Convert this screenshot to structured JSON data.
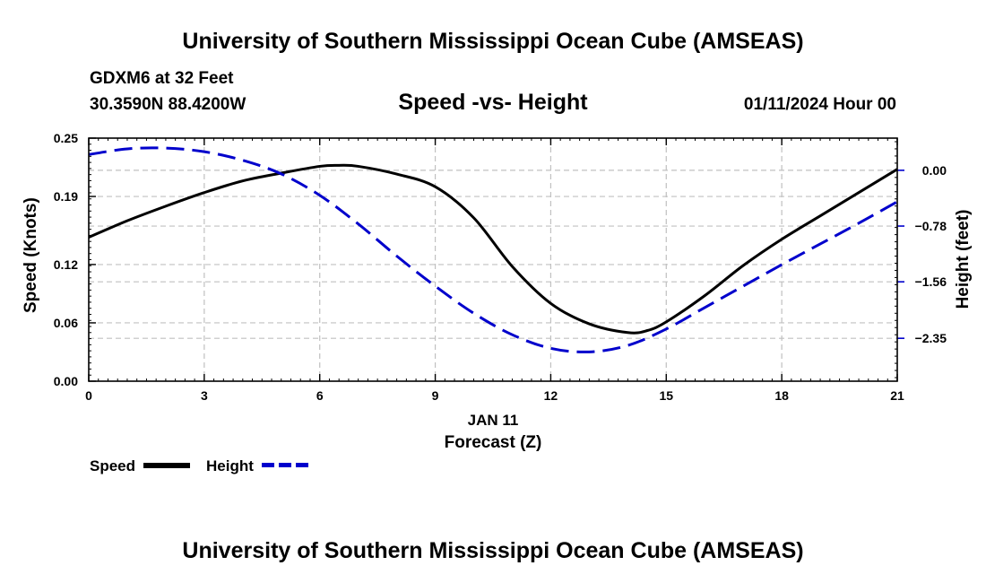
{
  "title": "University of Southern Mississippi Ocean Cube (AMSEAS)",
  "footer_title": "University of Southern Mississippi Ocean Cube (AMSEAS)",
  "station": {
    "name": "GDXM6 at 32 Feet",
    "coords": "30.3590N  88.4200W",
    "datetime": "01/11/2024 Hour 00"
  },
  "legend": {
    "speed_label": "Speed",
    "height_label": "Height"
  },
  "colors": {
    "speed": "#000000",
    "height": "#0000cc",
    "grid": "#c0c0c0"
  },
  "chart_data": {
    "type": "line",
    "title": "Speed -vs- Height",
    "xlabel": "Forecast (Z)",
    "x_date_label": "JAN 11",
    "xlim": [
      0,
      21
    ],
    "x_ticks": [
      0,
      3,
      6,
      9,
      12,
      15,
      18,
      21
    ],
    "x_tick_labels": [
      "0",
      "3",
      "6",
      "9",
      "12",
      "15",
      "18",
      "21"
    ],
    "y_left": {
      "label": "Speed (Knots)",
      "lim": [
        0,
        0.25
      ],
      "ticks": [
        0,
        0.06,
        0.12,
        0.19,
        0.25
      ],
      "tick_labels": [
        "0.00",
        "0.06",
        "0.12",
        "0.19",
        "0.25"
      ]
    },
    "y_right": {
      "label": "Height (feet)",
      "lim": [
        -2.95,
        0.45
      ],
      "ticks": [
        0,
        -0.78,
        -1.56,
        -2.35
      ],
      "tick_labels": [
        "0.00",
        "−0.78",
        "−1.56",
        "−2.35"
      ]
    },
    "grid": true,
    "series": [
      {
        "name": "Speed",
        "axis": "left",
        "style": "solid",
        "x": [
          0,
          1,
          2,
          3,
          4,
          5,
          6,
          6.5,
          7,
          8,
          9,
          10,
          11,
          12,
          13,
          14,
          14.5,
          15,
          16,
          17,
          18,
          19,
          20,
          21
        ],
        "values": [
          0.148,
          0.165,
          0.18,
          0.194,
          0.206,
          0.214,
          0.221,
          0.222,
          0.221,
          0.213,
          0.2,
          0.168,
          0.118,
          0.08,
          0.059,
          0.05,
          0.052,
          0.061,
          0.088,
          0.119,
          0.146,
          0.17,
          0.194,
          0.218
        ]
      },
      {
        "name": "Height",
        "axis": "right",
        "style": "dashed",
        "x": [
          0,
          1,
          2,
          3,
          4,
          5,
          6,
          7,
          8,
          9,
          10,
          11,
          12,
          13,
          14,
          15,
          16,
          17,
          18,
          19,
          20,
          21
        ],
        "values": [
          0.22,
          0.3,
          0.31,
          0.26,
          0.14,
          -0.05,
          -0.35,
          -0.75,
          -1.2,
          -1.62,
          -2.0,
          -2.3,
          -2.49,
          -2.54,
          -2.45,
          -2.22,
          -1.92,
          -1.62,
          -1.32,
          -1.03,
          -0.74,
          -0.44
        ]
      }
    ]
  }
}
